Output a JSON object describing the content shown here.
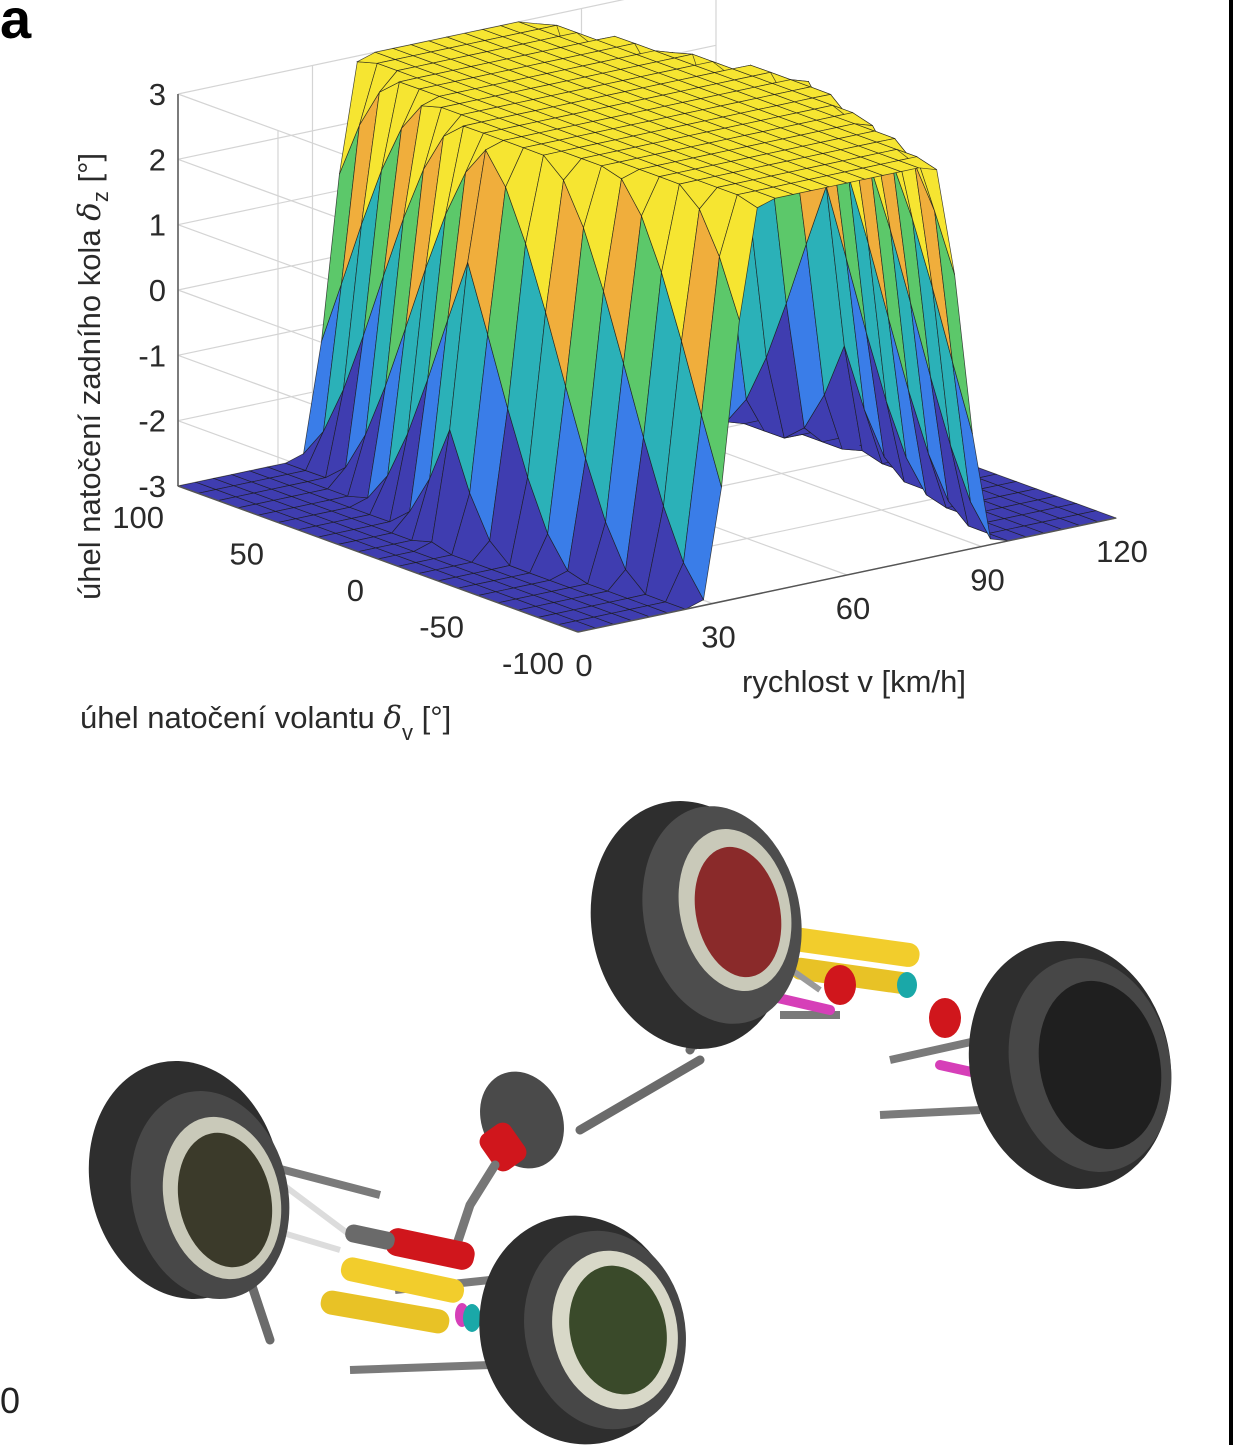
{
  "panel_letter": "a",
  "edge_fragments": [
    "0"
  ],
  "chart_data": {
    "type": "surface",
    "title": "",
    "x_axis": {
      "label": "rychlost v [km/h]",
      "ticks": [
        "0",
        "30",
        "60",
        "90",
        "120"
      ],
      "range": [
        0,
        120
      ]
    },
    "y_axis": {
      "label_main": "úhel natočení volantu ",
      "label_symbol": "δ",
      "label_sub": "v",
      "label_unit": " [°]",
      "ticks": [
        "100",
        "50",
        "0",
        "-50",
        "-100"
      ],
      "range": [
        -100,
        100
      ]
    },
    "z_axis": {
      "label_main": "úhel natočení zadního kola ",
      "label_symbol": "δ",
      "label_sub": "z",
      "label_unit": " [°]",
      "ticks": [
        "3",
        "2",
        "1",
        "0",
        "-1",
        "-2",
        "-3"
      ],
      "range": [
        -3,
        3
      ]
    },
    "grid": true,
    "colormap": "parula",
    "description_of_data": "z = -3 for v below ~20 and above ~100 km/h; rises to +3 plateau between; ridge height varies with steering angle",
    "v_samples": [
      0,
      10,
      20,
      25,
      30,
      35,
      40,
      45,
      50,
      55,
      60,
      65,
      70,
      75,
      80,
      85,
      90,
      95,
      100,
      110,
      120
    ],
    "delta_v_samples": [
      -100,
      -80,
      -60,
      -40,
      -20,
      0,
      20,
      40,
      60,
      80,
      100
    ],
    "z_profile_vs_v": [
      -3,
      -3,
      -3,
      -2.4,
      -0.5,
      1.6,
      2.8,
      3,
      3,
      3,
      3,
      3,
      3,
      3,
      2.8,
      1.6,
      -0.5,
      -2.4,
      -3,
      -3,
      -3
    ]
  },
  "illustration": {
    "name": "four-wheel-steering chassis model",
    "colors": {
      "tire": "#3a3a3a",
      "rim": "#e6e6d6",
      "actuator_yellow": "#f2cd2c",
      "actuator_red": "#d0161c",
      "rod_magenta": "#d63fb8",
      "rod_gray": "#7a7a7a"
    }
  }
}
